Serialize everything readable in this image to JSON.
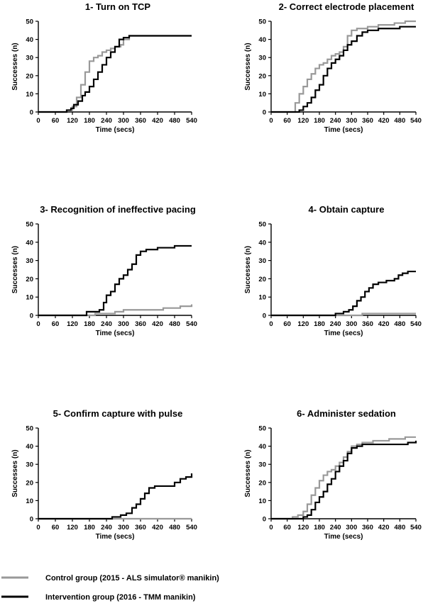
{
  "figure": {
    "legend": [
      {
        "label": "Control group (2015 - ALS simulator® manikin)",
        "color": "#999999"
      },
      {
        "label": "Intervention group (2016 - TMM manikin)",
        "color": "#000000"
      }
    ]
  },
  "chart_data": [
    {
      "type": "line",
      "title": "1- Turn on TCP",
      "xlabel": "Time (secs)",
      "ylabel": "Successes (n)",
      "xlim": [
        0,
        540
      ],
      "ylim": [
        0,
        50
      ],
      "xticks": [
        0,
        60,
        120,
        180,
        240,
        300,
        360,
        420,
        480,
        540
      ],
      "yticks": [
        0,
        10,
        20,
        30,
        40,
        50
      ],
      "series": [
        {
          "name": "Control group (2015 - ALS simulator® manikin)",
          "color": "#999999",
          "points": [
            [
              0,
              0
            ],
            [
              80,
              0
            ],
            [
              100,
              1
            ],
            [
              120,
              3
            ],
            [
              135,
              8
            ],
            [
              150,
              15
            ],
            [
              165,
              22
            ],
            [
              180,
              28
            ],
            [
              195,
              30
            ],
            [
              210,
              31
            ],
            [
              225,
              33
            ],
            [
              240,
              34
            ],
            [
              255,
              35
            ],
            [
              270,
              36
            ],
            [
              290,
              37
            ],
            [
              300,
              40
            ],
            [
              320,
              42
            ],
            [
              540,
              42
            ]
          ]
        },
        {
          "name": "Intervention group (2016 - TMM manikin)",
          "color": "#000000",
          "points": [
            [
              0,
              0
            ],
            [
              80,
              0
            ],
            [
              100,
              1
            ],
            [
              115,
              2
            ],
            [
              125,
              4
            ],
            [
              140,
              6
            ],
            [
              155,
              9
            ],
            [
              165,
              11
            ],
            [
              180,
              14
            ],
            [
              195,
              18
            ],
            [
              210,
              22
            ],
            [
              225,
              26
            ],
            [
              240,
              30
            ],
            [
              255,
              33
            ],
            [
              270,
              36
            ],
            [
              285,
              40
            ],
            [
              300,
              41
            ],
            [
              320,
              42
            ],
            [
              540,
              42
            ]
          ]
        }
      ]
    },
    {
      "type": "line",
      "title": "2- Correct electrode placement",
      "xlabel": "Time (secs)",
      "ylabel": "Successes (n)",
      "xlim": [
        0,
        540
      ],
      "ylim": [
        0,
        50
      ],
      "xticks": [
        0,
        60,
        120,
        180,
        240,
        300,
        360,
        420,
        480,
        540
      ],
      "yticks": [
        0,
        10,
        20,
        30,
        40,
        50
      ],
      "series": [
        {
          "name": "Control group (2015 - ALS simulator® manikin)",
          "color": "#999999",
          "points": [
            [
              0,
              0
            ],
            [
              75,
              0
            ],
            [
              90,
              5
            ],
            [
              105,
              10
            ],
            [
              120,
              14
            ],
            [
              135,
              18
            ],
            [
              150,
              21
            ],
            [
              165,
              24
            ],
            [
              180,
              26
            ],
            [
              195,
              27
            ],
            [
              210,
              29
            ],
            [
              225,
              31
            ],
            [
              240,
              32
            ],
            [
              255,
              33
            ],
            [
              270,
              36
            ],
            [
              285,
              42
            ],
            [
              300,
              45
            ],
            [
              320,
              46
            ],
            [
              360,
              47
            ],
            [
              400,
              48
            ],
            [
              460,
              49
            ],
            [
              500,
              50
            ],
            [
              540,
              50
            ]
          ]
        },
        {
          "name": "Intervention group (2016 - TMM manikin)",
          "color": "#000000",
          "points": [
            [
              0,
              0
            ],
            [
              90,
              0
            ],
            [
              105,
              1
            ],
            [
              120,
              3
            ],
            [
              135,
              5
            ],
            [
              150,
              8
            ],
            [
              165,
              12
            ],
            [
              180,
              15
            ],
            [
              195,
              20
            ],
            [
              210,
              24
            ],
            [
              225,
              27
            ],
            [
              240,
              29
            ],
            [
              255,
              31
            ],
            [
              270,
              34
            ],
            [
              285,
              37
            ],
            [
              300,
              39
            ],
            [
              320,
              42
            ],
            [
              340,
              44
            ],
            [
              360,
              45
            ],
            [
              400,
              46
            ],
            [
              480,
              47
            ],
            [
              540,
              47
            ]
          ]
        }
      ]
    },
    {
      "type": "line",
      "title": "3- Recognition of ineffective pacing",
      "xlabel": "Time (secs)",
      "ylabel": "Successes (n)",
      "xlim": [
        0,
        540
      ],
      "ylim": [
        0,
        50
      ],
      "xticks": [
        0,
        60,
        120,
        180,
        240,
        300,
        360,
        420,
        480,
        540
      ],
      "yticks": [
        0,
        10,
        20,
        30,
        40,
        50
      ],
      "series": [
        {
          "name": "Control group (2015 - ALS simulator® manikin)",
          "color": "#999999",
          "points": [
            [
              0,
              0
            ],
            [
              180,
              0
            ],
            [
              200,
              1
            ],
            [
              240,
              1
            ],
            [
              270,
              2
            ],
            [
              300,
              3
            ],
            [
              400,
              3
            ],
            [
              440,
              4
            ],
            [
              500,
              5
            ],
            [
              540,
              6
            ]
          ]
        },
        {
          "name": "Intervention group (2016 - TMM manikin)",
          "color": "#000000",
          "points": [
            [
              0,
              0
            ],
            [
              160,
              0
            ],
            [
              170,
              2
            ],
            [
              200,
              2
            ],
            [
              215,
              3
            ],
            [
              230,
              7
            ],
            [
              240,
              11
            ],
            [
              255,
              13
            ],
            [
              270,
              17
            ],
            [
              285,
              20
            ],
            [
              300,
              22
            ],
            [
              315,
              25
            ],
            [
              330,
              28
            ],
            [
              345,
              33
            ],
            [
              360,
              35
            ],
            [
              380,
              36
            ],
            [
              420,
              37
            ],
            [
              480,
              38
            ],
            [
              540,
              38
            ]
          ]
        }
      ]
    },
    {
      "type": "line",
      "title": "4- Obtain capture",
      "xlabel": "Time (secs)",
      "ylabel": "Successes (n)",
      "xlim": [
        0,
        540
      ],
      "ylim": [
        0,
        50
      ],
      "xticks": [
        0,
        60,
        120,
        180,
        240,
        300,
        360,
        420,
        480,
        540
      ],
      "yticks": [
        0,
        10,
        20,
        30,
        40,
        50
      ],
      "series": [
        {
          "name": "Control group (2015 - ALS simulator® manikin)",
          "color": "#999999",
          "points": [
            [
              0,
              0
            ],
            [
              330,
              0
            ],
            [
              340,
              1
            ],
            [
              540,
              1
            ]
          ]
        },
        {
          "name": "Intervention group (2016 - TMM manikin)",
          "color": "#000000",
          "points": [
            [
              0,
              0
            ],
            [
              220,
              0
            ],
            [
              240,
              1
            ],
            [
              270,
              2
            ],
            [
              290,
              3
            ],
            [
              305,
              5
            ],
            [
              320,
              8
            ],
            [
              335,
              10
            ],
            [
              350,
              13
            ],
            [
              365,
              15
            ],
            [
              380,
              17
            ],
            [
              400,
              18
            ],
            [
              430,
              19
            ],
            [
              460,
              20
            ],
            [
              475,
              22
            ],
            [
              490,
              23
            ],
            [
              510,
              24
            ],
            [
              540,
              24
            ]
          ]
        }
      ]
    },
    {
      "type": "line",
      "title": "5- Confirm capture with pulse",
      "xlabel": "Time (secs)",
      "ylabel": "Successes (n)",
      "xlim": [
        0,
        540
      ],
      "ylim": [
        0,
        50
      ],
      "xticks": [
        0,
        60,
        120,
        180,
        240,
        300,
        360,
        420,
        480,
        540
      ],
      "yticks": [
        0,
        10,
        20,
        30,
        40,
        50
      ],
      "series": [
        {
          "name": "Control group (2015 - ALS simulator® manikin)",
          "color": "#999999",
          "points": [
            [
              0,
              0
            ],
            [
              540,
              0
            ]
          ]
        },
        {
          "name": "Intervention group (2016 - TMM manikin)",
          "color": "#000000",
          "points": [
            [
              0,
              0
            ],
            [
              240,
              0
            ],
            [
              260,
              1
            ],
            [
              290,
              2
            ],
            [
              310,
              3
            ],
            [
              330,
              6
            ],
            [
              345,
              8
            ],
            [
              360,
              11
            ],
            [
              375,
              14
            ],
            [
              390,
              17
            ],
            [
              410,
              18
            ],
            [
              450,
              18
            ],
            [
              480,
              20
            ],
            [
              500,
              22
            ],
            [
              520,
              23
            ],
            [
              535,
              23
            ],
            [
              540,
              25
            ]
          ]
        }
      ]
    },
    {
      "type": "line",
      "title": "6- Administer sedation",
      "xlabel": "Time (secs)",
      "ylabel": "Successes (n)",
      "xlim": [
        0,
        540
      ],
      "ylim": [
        0,
        50
      ],
      "xticks": [
        0,
        60,
        120,
        180,
        240,
        300,
        360,
        420,
        480,
        540
      ],
      "yticks": [
        0,
        10,
        20,
        30,
        40,
        50
      ],
      "series": [
        {
          "name": "Control group (2015 - ALS simulator® manikin)",
          "color": "#999999",
          "points": [
            [
              0,
              0
            ],
            [
              60,
              0
            ],
            [
              80,
              1
            ],
            [
              100,
              2
            ],
            [
              120,
              4
            ],
            [
              135,
              8
            ],
            [
              150,
              13
            ],
            [
              165,
              17
            ],
            [
              180,
              21
            ],
            [
              195,
              24
            ],
            [
              210,
              26
            ],
            [
              225,
              27
            ],
            [
              240,
              29
            ],
            [
              255,
              31
            ],
            [
              270,
              34
            ],
            [
              285,
              37
            ],
            [
              300,
              40
            ],
            [
              320,
              41
            ],
            [
              340,
              42
            ],
            [
              380,
              43
            ],
            [
              440,
              44
            ],
            [
              500,
              45
            ],
            [
              540,
              45
            ]
          ]
        },
        {
          "name": "Intervention group (2016 - TMM manikin)",
          "color": "#000000",
          "points": [
            [
              0,
              0
            ],
            [
              100,
              0
            ],
            [
              120,
              1
            ],
            [
              135,
              2
            ],
            [
              150,
              5
            ],
            [
              165,
              9
            ],
            [
              180,
              12
            ],
            [
              195,
              15
            ],
            [
              210,
              19
            ],
            [
              225,
              22
            ],
            [
              240,
              26
            ],
            [
              255,
              29
            ],
            [
              270,
              32
            ],
            [
              285,
              36
            ],
            [
              300,
              39
            ],
            [
              320,
              40
            ],
            [
              340,
              41
            ],
            [
              480,
              41
            ],
            [
              510,
              42
            ],
            [
              540,
              43
            ]
          ]
        }
      ]
    }
  ]
}
